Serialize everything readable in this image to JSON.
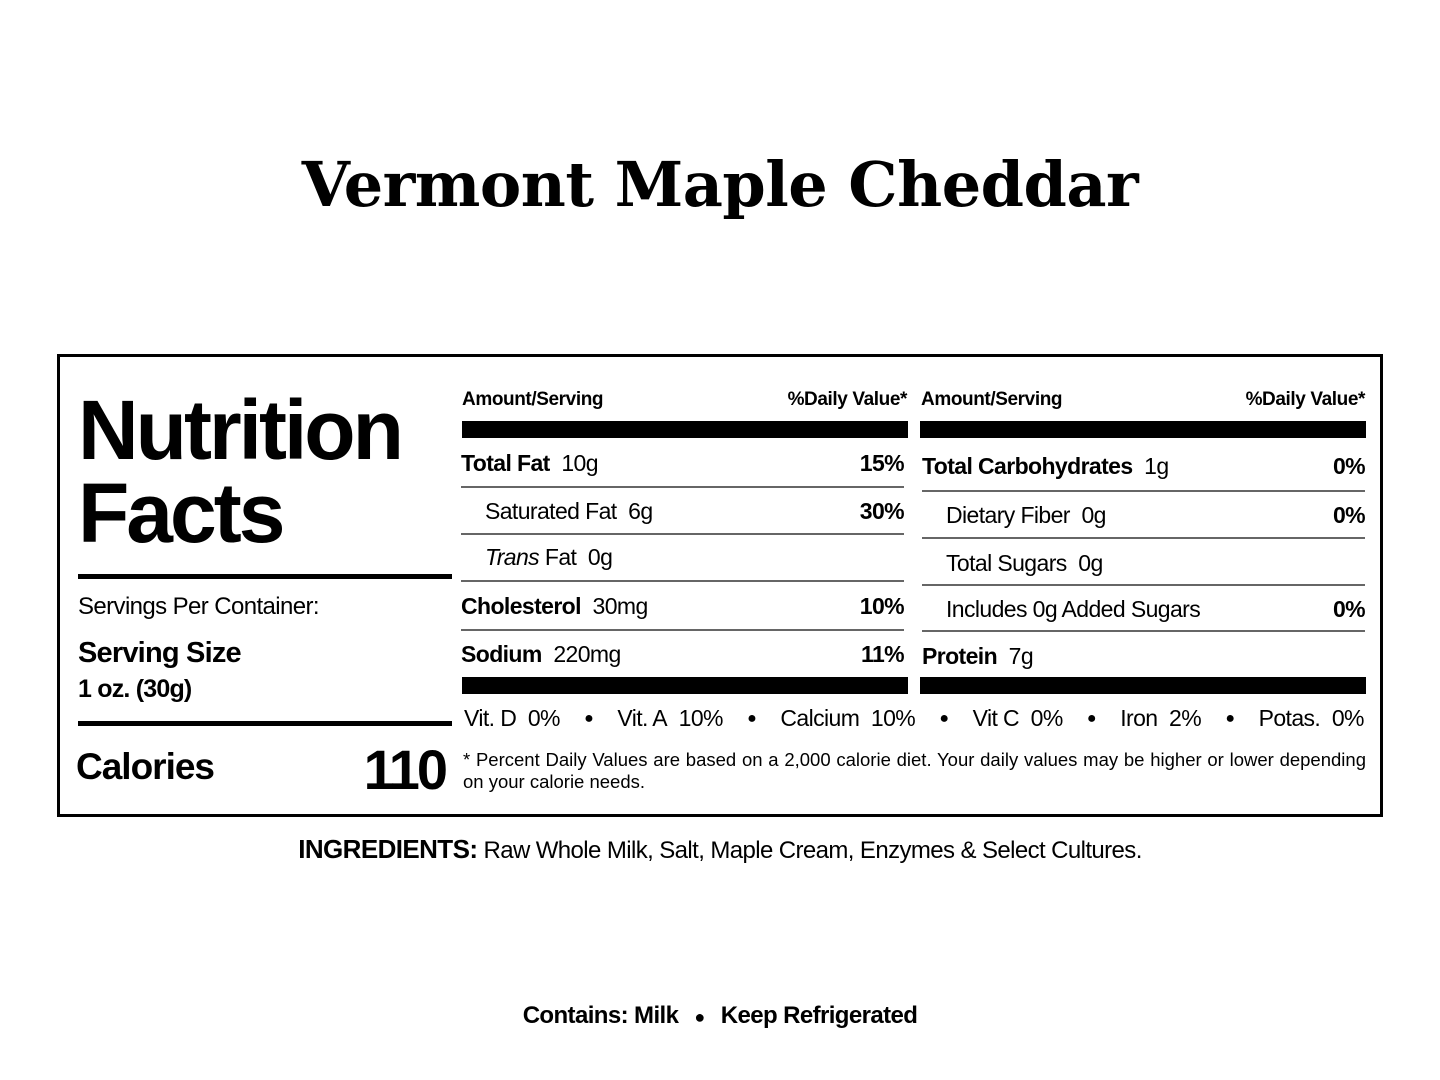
{
  "title": "Vermont Maple Cheddar",
  "facts": {
    "heading_line1": "Nutrition",
    "heading_line2": "Facts",
    "servings_per_container": "Servings Per Container:",
    "serving_size_label": "Serving Size",
    "serving_size_value": "1 oz. (30g)",
    "calories_label": "Calories",
    "calories_value": "110"
  },
  "left_table": {
    "header_amount": "Amount/Serving",
    "header_dv": "%Daily Value*",
    "rows": [
      {
        "name": "Total Fat",
        "amount": "10g",
        "dv": "15%",
        "bold": true
      },
      {
        "name": "Saturated Fat",
        "amount": "6g",
        "dv": "30%",
        "bold": false
      },
      {
        "name_italic": "Trans",
        "name": "Fat",
        "amount": "0g",
        "dv": "",
        "bold": false
      },
      {
        "name": "Cholesterol",
        "amount": "30mg",
        "dv": "10%",
        "bold": true
      },
      {
        "name": "Sodium",
        "amount": "220mg",
        "dv": "11%",
        "bold": true
      }
    ]
  },
  "right_table": {
    "header_amount": "Amount/Serving",
    "header_dv": "%Daily Value*",
    "rows": [
      {
        "name": "Total Carbohydrates",
        "amount": "1g",
        "dv": "0%",
        "bold": true
      },
      {
        "name": "Dietary Fiber",
        "amount": "0g",
        "dv": "0%",
        "bold": false
      },
      {
        "name": "Total Sugars",
        "amount": "0g",
        "dv": "",
        "bold": false
      },
      {
        "name": "Includes 0g Added Sugars",
        "amount": "",
        "dv": "0%",
        "bold": false
      },
      {
        "name": "Protein",
        "amount": "7g",
        "dv": "",
        "bold": true
      }
    ]
  },
  "vitamins": [
    {
      "name": "Vit. D",
      "value": "0%"
    },
    {
      "name": "Vit. A",
      "value": "10%"
    },
    {
      "name": "Calcium",
      "value": "10%"
    },
    {
      "name": "Vit C",
      "value": "0%"
    },
    {
      "name": "Iron",
      "value": "2%"
    },
    {
      "name": "Potas.",
      "value": "0%"
    }
  ],
  "footnote": "* Percent Daily Values are based on a 2,000 calorie diet. Your daily values may be higher or lower depending on your calorie needs.",
  "ingredients": {
    "label": "INGREDIENTS:",
    "text": "Raw Whole Milk, Salt, Maple Cream, Enzymes & Select Cultures."
  },
  "contains": {
    "label": "Contains:",
    "allergen": "Milk",
    "storage": "Keep Refrigerated"
  }
}
